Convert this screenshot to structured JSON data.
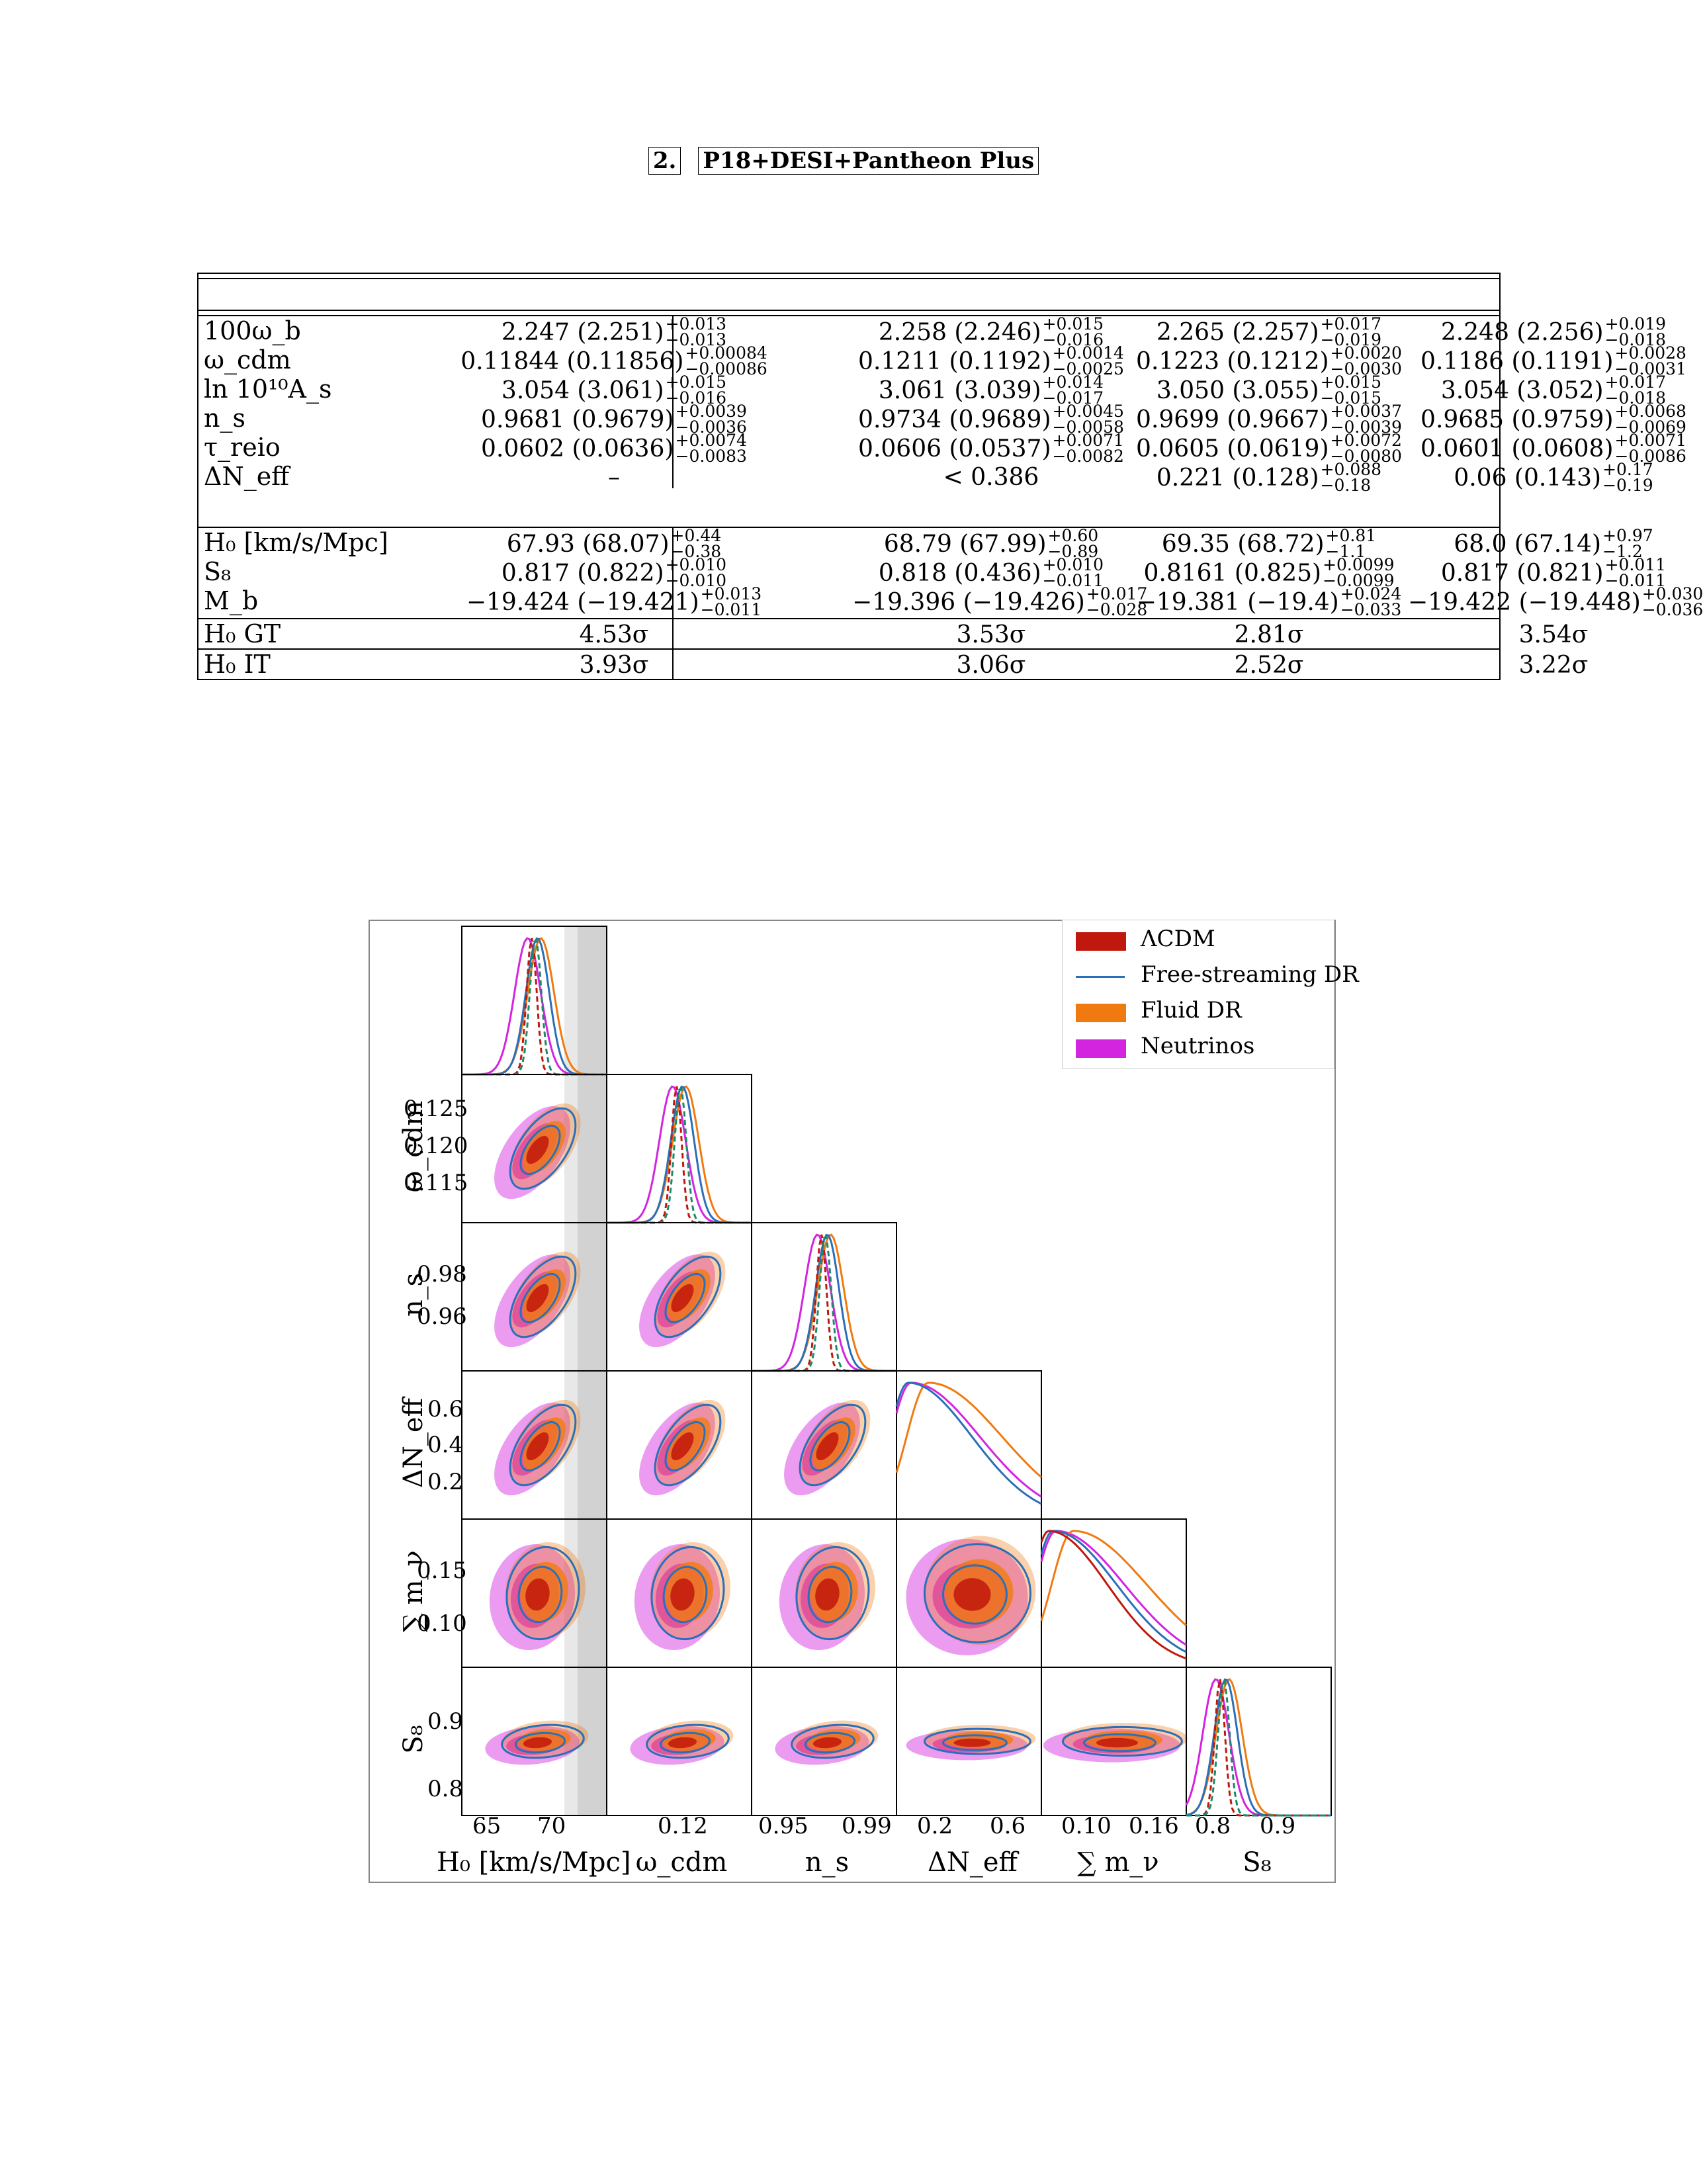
{
  "section": {
    "number": "2.",
    "title": "P18+DESI+Pantheon Plus"
  },
  "params": [
    {
      "label": "100ω_b",
      "cells": [
        {
          "main": "2.247 (2.251)",
          "up": "+0.013",
          "down": "−0.013"
        },
        {
          "main": "2.258 (2.246)",
          "up": "+0.015",
          "down": "−0.016"
        },
        {
          "main": "2.265 (2.257)",
          "up": "+0.017",
          "down": "−0.019"
        },
        {
          "main": "2.248 (2.256)",
          "up": "+0.019",
          "down": "−0.018"
        }
      ]
    },
    {
      "label": "ω_cdm",
      "cells": [
        {
          "main": "0.11844 (0.11856)",
          "up": "+0.00084",
          "down": "−0.00086"
        },
        {
          "main": "0.1211 (0.1192)",
          "up": "+0.0014",
          "down": "−0.0025"
        },
        {
          "main": "0.1223 (0.1212)",
          "up": "+0.0020",
          "down": "−0.0030"
        },
        {
          "main": "0.1186 (0.1191)",
          "up": "+0.0028",
          "down": "−0.0031"
        }
      ]
    },
    {
      "label": "ln 10¹⁰A_s",
      "cells": [
        {
          "main": "3.054 (3.061)",
          "up": "+0.015",
          "down": "−0.016"
        },
        {
          "main": "3.061 (3.039)",
          "up": "+0.014",
          "down": "−0.017"
        },
        {
          "main": "3.050 (3.055)",
          "up": "+0.015",
          "down": "−0.015"
        },
        {
          "main": "3.054 (3.052)",
          "up": "+0.017",
          "down": "−0.018"
        }
      ]
    },
    {
      "label": "n_s",
      "cells": [
        {
          "main": "0.9681 (0.9679)",
          "up": "+0.0039",
          "down": "−0.0036"
        },
        {
          "main": "0.9734 (0.9689)",
          "up": "+0.0045",
          "down": "−0.0058"
        },
        {
          "main": "0.9699 (0.9667)",
          "up": "+0.0037",
          "down": "−0.0039"
        },
        {
          "main": "0.9685 (0.9759)",
          "up": "+0.0068",
          "down": "−0.0069"
        }
      ]
    },
    {
      "label": "τ_reio",
      "cells": [
        {
          "main": "0.0602 (0.0636)",
          "up": "+0.0074",
          "down": "−0.0083"
        },
        {
          "main": "0.0606 (0.0537)",
          "up": "+0.0071",
          "down": "−0.0082"
        },
        {
          "main": "0.0605 (0.0619)",
          "up": "+0.0072",
          "down": "−0.0080"
        },
        {
          "main": "0.0601 (0.0608)",
          "up": "+0.0071",
          "down": "−0.0086"
        }
      ]
    },
    {
      "label": "ΔN_eff",
      "cells": [
        {
          "main": "–",
          "up": "",
          "down": ""
        },
        {
          "main": "< 0.386",
          "up": "",
          "down": ""
        },
        {
          "main": "0.221 (0.128)",
          "up": "+0.088",
          "down": "−0.18"
        },
        {
          "main": "0.06 (0.143)",
          "up": "+0.17",
          "down": "−0.19"
        }
      ]
    }
  ],
  "derived": [
    {
      "label": "H₀ [km/s/Mpc]",
      "cells": [
        {
          "main": "67.93 (68.07)",
          "up": "+0.44",
          "down": "−0.38"
        },
        {
          "main": "68.79 (67.99)",
          "up": "+0.60",
          "down": "−0.89"
        },
        {
          "main": "69.35 (68.72)",
          "up": "+0.81",
          "down": "−1.1"
        },
        {
          "main": "68.0 (67.14)",
          "up": "+0.97",
          "down": "−1.2"
        }
      ]
    },
    {
      "label": "S₈",
      "cells": [
        {
          "main": "0.817 (0.822)",
          "up": "+0.010",
          "down": "−0.010"
        },
        {
          "main": "0.818 (0.436)",
          "up": "+0.010",
          "down": "−0.011"
        },
        {
          "main": "0.8161 (0.825)",
          "up": "+0.0099",
          "down": "−0.0099"
        },
        {
          "main": "0.817 (0.821)",
          "up": "+0.011",
          "down": "−0.011"
        }
      ]
    },
    {
      "label": "M_b",
      "cells": [
        {
          "main": "−19.424 (−19.421)",
          "up": "+0.013",
          "down": "−0.011"
        },
        {
          "main": "−19.396 (−19.426)",
          "up": "+0.017",
          "down": "−0.028"
        },
        {
          "main": "−19.381 (−19.4)",
          "up": "+0.024",
          "down": "−0.033"
        },
        {
          "main": "−19.422 (−19.448)",
          "up": "+0.030",
          "down": "−0.036"
        }
      ]
    }
  ],
  "tensions": [
    {
      "label": "H₀ GT",
      "cells": [
        "4.53σ",
        "3.53σ",
        "2.81σ",
        "3.54σ"
      ]
    },
    {
      "label": "H₀ IT",
      "cells": [
        "3.93σ",
        "3.06σ",
        "2.52σ",
        "3.22σ"
      ]
    }
  ],
  "figure": {
    "legend": [
      {
        "label": "ΛCDM",
        "color": "#c0180c",
        "style": "fill"
      },
      {
        "label": "Free-streaming DR",
        "color": "#2b6fb8",
        "style": "line"
      },
      {
        "label": "Fluid DR",
        "color": "#f07a10",
        "style": "fill"
      },
      {
        "label": "Neutrinos",
        "color": "#d324e0",
        "style": "fill"
      }
    ],
    "x_axis_labels": [
      "H₀ [km/s/Mpc]",
      "ω_cdm",
      "n_s",
      "ΔN_eff",
      "∑ m_ν",
      "S₈"
    ],
    "y_axis_labels": [
      "ω_cdm",
      "n_s",
      "ΔN_eff",
      "∑ m_ν",
      "S₈"
    ],
    "x_ticks": [
      [
        "65",
        "70"
      ],
      [
        "0.12"
      ],
      [
        "0.95",
        "0.99"
      ],
      [
        "0.2",
        "0.6"
      ],
      [
        "0.10",
        "0.16"
      ],
      [
        "0.8",
        "0.9"
      ]
    ],
    "y_ticks": [
      [
        "0.125",
        "0.120",
        "0.115"
      ],
      [
        "0.98",
        "0.96"
      ],
      [
        "0.6",
        "0.4",
        "0.2"
      ],
      [
        "0.15",
        "0.10"
      ],
      [
        "0.9",
        "0.8"
      ]
    ]
  }
}
